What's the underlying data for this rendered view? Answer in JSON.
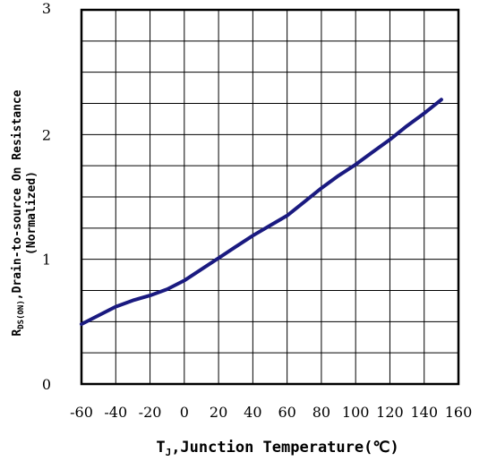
{
  "chart_data": {
    "type": "line",
    "title": "",
    "xlabel": {
      "main": "T",
      "sub": "J",
      "rest": ",Junction Temperature(℃)"
    },
    "ylabel": {
      "line1_main": "R",
      "line1_sub": "DS(ON)",
      "line1_rest": ",Drain-to-source On Resistance",
      "line2": "(Normalized)"
    },
    "xlim": [
      -60,
      160
    ],
    "ylim": [
      0,
      3
    ],
    "x_ticks": [
      -60,
      -40,
      -20,
      0,
      20,
      40,
      60,
      80,
      100,
      120,
      140,
      160
    ],
    "x_tick_labels": [
      "-60",
      "-40",
      "-20",
      "0",
      "20",
      "40",
      "60",
      "80",
      "100",
      "120",
      "140",
      "160"
    ],
    "y_ticks": [
      0,
      1,
      2,
      3
    ],
    "y_tick_labels": [
      "0",
      "1",
      "2",
      "3"
    ],
    "x_grid_step": 20,
    "y_grid_step": 0.25,
    "grid": true,
    "series": [
      {
        "color": "#1a1a80",
        "x": [
          -60,
          -50,
          -40,
          -30,
          -20,
          -10,
          0,
          10,
          20,
          30,
          40,
          50,
          60,
          70,
          80,
          90,
          100,
          110,
          120,
          130,
          140,
          150
        ],
        "y": [
          0.48,
          0.55,
          0.62,
          0.67,
          0.71,
          0.76,
          0.83,
          0.92,
          1.01,
          1.1,
          1.19,
          1.27,
          1.35,
          1.46,
          1.57,
          1.67,
          1.76,
          1.86,
          1.96,
          2.07,
          2.17,
          2.28
        ]
      }
    ]
  }
}
